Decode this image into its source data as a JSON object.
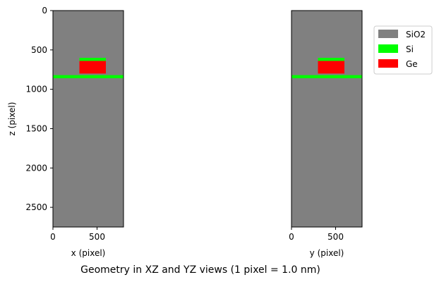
{
  "figure_title": "Geometry in XZ and YZ views (1 pixel = 1.0 nm)",
  "colors": {
    "SiO2": "#808080",
    "Si": "#00ff00",
    "Ge": "#ff0000"
  },
  "chart_data": [
    {
      "type": "heatmap",
      "panel": "xz",
      "xlabel": "x (pixel)",
      "ylabel": "z (pixel)",
      "xlim": [
        0,
        800
      ],
      "ylim": [
        2750,
        0
      ],
      "xticks": [
        0,
        500
      ],
      "yticks": [
        0,
        500,
        1000,
        1500,
        2000,
        2500
      ],
      "regions": [
        {
          "material": "SiO2",
          "x": [
            0,
            800
          ],
          "z": [
            0,
            2750
          ]
        },
        {
          "material": "Si",
          "x": [
            300,
            600
          ],
          "z": [
            600,
            640
          ]
        },
        {
          "material": "Ge",
          "x": [
            300,
            600
          ],
          "z": [
            640,
            800
          ]
        },
        {
          "material": "Si",
          "x": [
            0,
            800
          ],
          "z": [
            820,
            860
          ]
        }
      ]
    },
    {
      "type": "heatmap",
      "panel": "yz",
      "xlabel": "y (pixel)",
      "ylabel": "",
      "xlim": [
        0,
        800
      ],
      "ylim": [
        2750,
        0
      ],
      "xticks": [
        0,
        500
      ],
      "yticks": [],
      "regions": [
        {
          "material": "SiO2",
          "x": [
            0,
            800
          ],
          "z": [
            0,
            2750
          ]
        },
        {
          "material": "Si",
          "x": [
            300,
            600
          ],
          "z": [
            600,
            640
          ]
        },
        {
          "material": "Ge",
          "x": [
            300,
            600
          ],
          "z": [
            640,
            800
          ]
        },
        {
          "material": "Si",
          "x": [
            0,
            800
          ],
          "z": [
            820,
            860
          ]
        }
      ]
    }
  ],
  "legend": {
    "placement": "top-right",
    "items": [
      {
        "label": "SiO2",
        "material": "SiO2"
      },
      {
        "label": "Si",
        "material": "Si"
      },
      {
        "label": "Ge",
        "material": "Ge"
      }
    ]
  }
}
